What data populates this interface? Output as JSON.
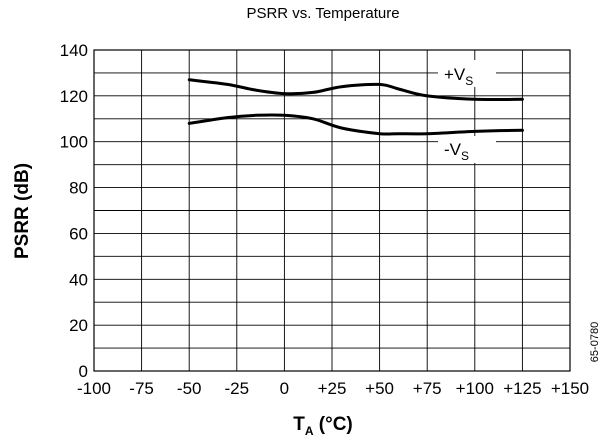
{
  "chart_data": {
    "type": "line",
    "title": "PSRR vs. Temperature",
    "xlabel": {
      "main": "T",
      "sub": "A",
      "rest": " (°C)"
    },
    "ylabel": "PSRR (dB)",
    "xlim": [
      -100,
      150
    ],
    "ylim": [
      0,
      140
    ],
    "grid": true,
    "x_ticks": [
      "-100",
      "-75",
      "-50",
      "-25",
      "0",
      "+25",
      "+50",
      "+75",
      "+100",
      "+125",
      "+150"
    ],
    "y_ticks": [
      "0",
      "20",
      "40",
      "60",
      "80",
      "100",
      "120",
      "140"
    ],
    "series": [
      {
        "name": {
          "main": "+V",
          "sub": "S"
        },
        "x": [
          -50,
          -30,
          -15,
          0,
          15,
          30,
          50,
          60,
          75,
          100,
          125
        ],
        "y": [
          127,
          125,
          122.5,
          121,
          121.5,
          124,
          125,
          123,
          120,
          118.5,
          118.5
        ]
      },
      {
        "name": {
          "main": "-V",
          "sub": "S"
        },
        "x": [
          -50,
          -30,
          -15,
          0,
          15,
          30,
          50,
          60,
          75,
          100,
          125
        ],
        "y": [
          108,
          110.5,
          111.5,
          111.5,
          110,
          106,
          103.5,
          103.5,
          103.5,
          104.5,
          105
        ]
      }
    ],
    "annotation": "65-0780"
  }
}
